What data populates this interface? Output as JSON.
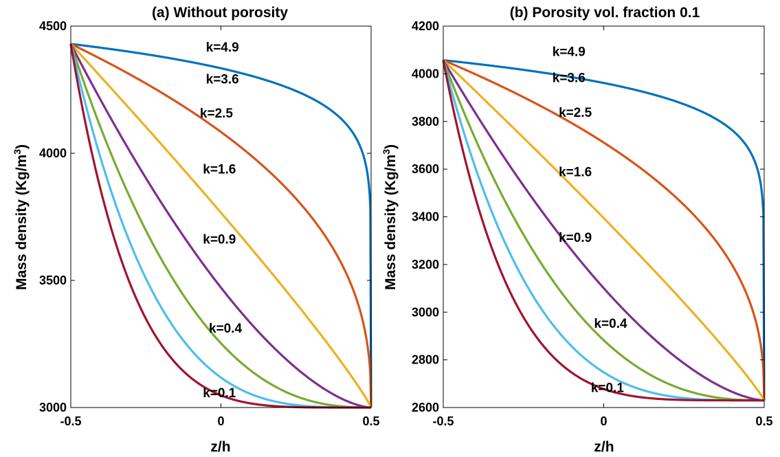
{
  "chart_data": [
    {
      "type": "line",
      "title": "(a) Without porosity",
      "xlabel": "z/h",
      "ylabel": "Mass density (Kg/m",
      "ylabel_sup": "3",
      "ylabel_close": ")",
      "xlim": [
        -0.5,
        0.5
      ],
      "ylim": [
        3000,
        4500
      ],
      "xticks": [
        -0.5,
        0,
        0.5
      ],
      "xtick_labels": [
        "-0.5",
        "0",
        "0.5"
      ],
      "yticks": [
        3000,
        3500,
        4000,
        4500
      ],
      "ytick_labels": [
        "3000",
        "3500",
        "4000",
        "4500"
      ],
      "rho_top": 4430,
      "rho_bottom": 3000,
      "x_start": -0.5,
      "x_end": 0.5,
      "grid": false,
      "series": [
        {
          "k": 0.1,
          "label": "k=0.1",
          "color": "#0072BD",
          "lx": -0.06,
          "ly": 3040
        },
        {
          "k": 0.4,
          "label": "k=0.4",
          "color": "#D95319",
          "lx": -0.04,
          "ly": 3295
        },
        {
          "k": 0.9,
          "label": "k=0.9",
          "color": "#EDB120",
          "lx": -0.06,
          "ly": 3645
        },
        {
          "k": 1.6,
          "label": "k=1.6",
          "color": "#7E2F8E",
          "lx": -0.06,
          "ly": 3920
        },
        {
          "k": 2.5,
          "label": "k=2.5",
          "color": "#77AC30",
          "lx": -0.07,
          "ly": 4140
        },
        {
          "k": 3.6,
          "label": "k=3.6",
          "color": "#4DBEEE",
          "lx": -0.05,
          "ly": 4275
        },
        {
          "k": 4.9,
          "label": "k=4.9",
          "color": "#A2142F",
          "lx": -0.05,
          "ly": 4400
        }
      ]
    },
    {
      "type": "line",
      "title": "(b) Porosity vol. fraction 0.1",
      "xlabel": "z/h",
      "ylabel": "Mass density (Kg/m",
      "ylabel_sup": "3",
      "ylabel_close": ")",
      "xlim": [
        -0.5,
        0.5
      ],
      "ylim": [
        2600,
        4200
      ],
      "xticks": [
        -0.5,
        0,
        0.5
      ],
      "xtick_labels": [
        "-0.5",
        "0",
        "0.5"
      ],
      "yticks": [
        2600,
        2800,
        3000,
        3200,
        3400,
        3600,
        3800,
        4000,
        4200
      ],
      "ytick_labels": [
        "2600",
        "2800",
        "3000",
        "3200",
        "3400",
        "3600",
        "3800",
        "4000",
        "4200"
      ],
      "rho_top": 4057,
      "rho_bottom": 2630,
      "x_start": -0.5,
      "x_end": 0.5,
      "grid": false,
      "series": [
        {
          "k": 0.1,
          "label": "k=0.1",
          "color": "#0072BD",
          "lx": -0.04,
          "ly": 2665
        },
        {
          "k": 0.4,
          "label": "k=0.4",
          "color": "#D95319",
          "lx": -0.03,
          "ly": 2935
        },
        {
          "k": 0.9,
          "label": "k=0.9",
          "color": "#EDB120",
          "lx": -0.14,
          "ly": 3295
        },
        {
          "k": 1.6,
          "label": "k=1.6",
          "color": "#7E2F8E",
          "lx": -0.14,
          "ly": 3570
        },
        {
          "k": 2.5,
          "label": "k=2.5",
          "color": "#77AC30",
          "lx": -0.14,
          "ly": 3820
        },
        {
          "k": 3.6,
          "label": "k=3.6",
          "color": "#4DBEEE",
          "lx": -0.16,
          "ly": 3965
        },
        {
          "k": 4.9,
          "label": "k=4.9",
          "color": "#A2142F",
          "lx": -0.16,
          "ly": 4075
        }
      ]
    }
  ]
}
